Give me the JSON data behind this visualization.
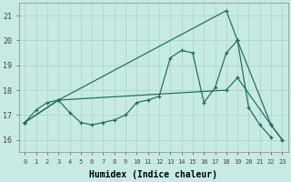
{
  "xlabel": "Humidex (Indice chaleur)",
  "bg_color": "#c8eae4",
  "grid_color": "#a8d4ce",
  "line_color": "#1a6b5a",
  "xlim": [
    -0.5,
    23.5
  ],
  "ylim": [
    15.5,
    21.5
  ],
  "yticks": [
    16,
    17,
    18,
    19,
    20,
    21
  ],
  "xticks": [
    0,
    1,
    2,
    3,
    4,
    5,
    6,
    7,
    8,
    9,
    10,
    11,
    12,
    13,
    14,
    15,
    16,
    17,
    18,
    19,
    20,
    21,
    22,
    23
  ],
  "line_zigzag_x": [
    0,
    1,
    2,
    3,
    4,
    5,
    6,
    7,
    8,
    9,
    10,
    11,
    12,
    13,
    14,
    15,
    16,
    17,
    18,
    19,
    20,
    21,
    22
  ],
  "line_zigzag_y": [
    16.7,
    17.2,
    17.5,
    17.6,
    17.1,
    16.7,
    16.6,
    16.7,
    16.8,
    17.0,
    17.5,
    17.6,
    17.75,
    19.3,
    19.6,
    19.5,
    17.5,
    18.1,
    19.5,
    20.0,
    17.3,
    16.6,
    16.1
  ],
  "line_upper_x": [
    0,
    3,
    18,
    19,
    22,
    23
  ],
  "line_upper_y": [
    16.7,
    17.6,
    21.2,
    20.0,
    16.6,
    16.0
  ],
  "line_lower_x": [
    0,
    3,
    18,
    19,
    22,
    23
  ],
  "line_lower_y": [
    16.7,
    17.6,
    18.0,
    18.5,
    16.6,
    16.0
  ]
}
